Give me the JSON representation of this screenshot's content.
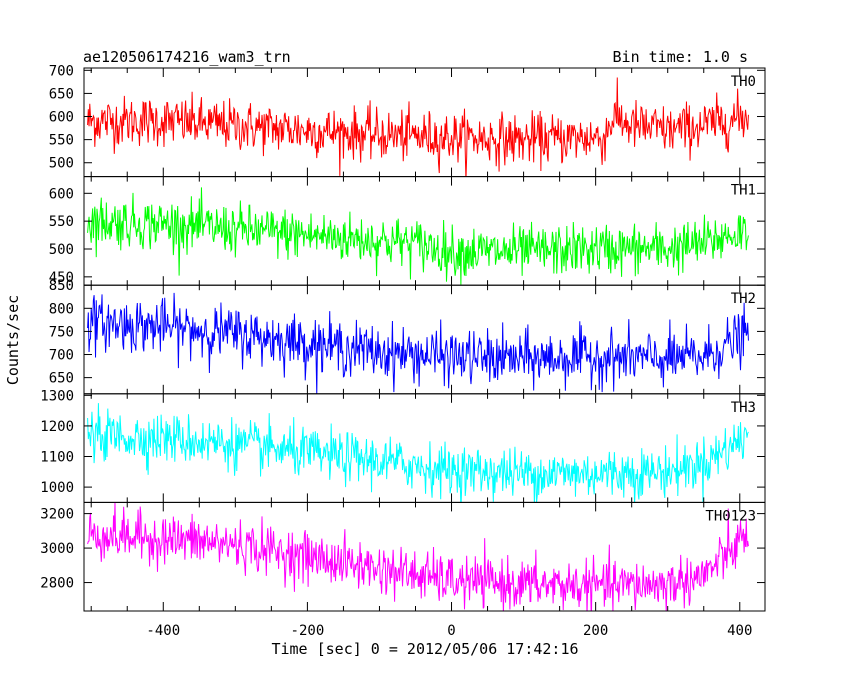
{
  "chart_data": {
    "type": "line",
    "title_left": "ae120506174216_wam3_trn",
    "title_right": "Bin time: 1.0 s",
    "xlabel": "Time [sec] 0 = 2012/05/06 17:42:16",
    "ylabel": "Counts/sec",
    "xlim": [
      -510,
      435
    ],
    "x_ticks": [
      -400,
      -200,
      0,
      200,
      400
    ],
    "x_range": [
      -505,
      412
    ],
    "grid": false,
    "legend": "none",
    "panels": [
      {
        "name": "TH0",
        "color": "#ff0000",
        "ylim": [
          470,
          705
        ],
        "y_ticks": [
          500,
          550,
          600,
          650,
          700
        ],
        "level": [
          [
            -505,
            590
          ],
          [
            -400,
            590
          ],
          [
            -300,
            580
          ],
          [
            -200,
            570
          ],
          [
            -100,
            560
          ],
          [
            0,
            555
          ],
          [
            100,
            550
          ],
          [
            200,
            555
          ],
          [
            210,
            550
          ],
          [
            225,
            600
          ],
          [
            250,
            580
          ],
          [
            300,
            570
          ],
          [
            350,
            580
          ],
          [
            412,
            600
          ]
        ],
        "noise": 30
      },
      {
        "name": "TH1",
        "color": "#00ff00",
        "ylim": [
          435,
          630
        ],
        "y_ticks": [
          450,
          500,
          550,
          600
        ],
        "level": [
          [
            -505,
            550
          ],
          [
            -400,
            545
          ],
          [
            -300,
            535
          ],
          [
            -200,
            525
          ],
          [
            -100,
            515
          ],
          [
            -50,
            510
          ],
          [
            0,
            495
          ],
          [
            100,
            495
          ],
          [
            200,
            500
          ],
          [
            300,
            500
          ],
          [
            350,
            510
          ],
          [
            412,
            535
          ]
        ],
        "noise": 25
      },
      {
        "name": "TH2",
        "color": "#0000ff",
        "ylim": [
          615,
          850
        ],
        "y_ticks": [
          650,
          700,
          750,
          800,
          850
        ],
        "level": [
          [
            -505,
            770
          ],
          [
            -400,
            760
          ],
          [
            -300,
            745
          ],
          [
            -200,
            725
          ],
          [
            -100,
            705
          ],
          [
            0,
            695
          ],
          [
            100,
            690
          ],
          [
            200,
            695
          ],
          [
            300,
            690
          ],
          [
            350,
            695
          ],
          [
            412,
            745
          ]
        ],
        "noise": 32
      },
      {
        "name": "TH3",
        "color": "#00ffff",
        "ylim": [
          950,
          1305
        ],
        "y_ticks": [
          1000,
          1100,
          1200,
          1300
        ],
        "level": [
          [
            -505,
            1170
          ],
          [
            -400,
            1160
          ],
          [
            -300,
            1140
          ],
          [
            -200,
            1110
          ],
          [
            -100,
            1085
          ],
          [
            0,
            1055
          ],
          [
            100,
            1045
          ],
          [
            200,
            1045
          ],
          [
            300,
            1050
          ],
          [
            350,
            1080
          ],
          [
            412,
            1170
          ]
        ],
        "noise": 45
      },
      {
        "name": "TH0123",
        "color": "#ff00ff",
        "ylim": [
          2635,
          3265
        ],
        "y_ticks": [
          2800,
          3000,
          3200
        ],
        "level": [
          [
            -505,
            3080
          ],
          [
            -400,
            3055
          ],
          [
            -300,
            3020
          ],
          [
            -200,
            2950
          ],
          [
            -100,
            2880
          ],
          [
            0,
            2810
          ],
          [
            100,
            2790
          ],
          [
            200,
            2780
          ],
          [
            300,
            2790
          ],
          [
            350,
            2840
          ],
          [
            412,
            3080
          ]
        ],
        "noise": 80
      }
    ]
  }
}
